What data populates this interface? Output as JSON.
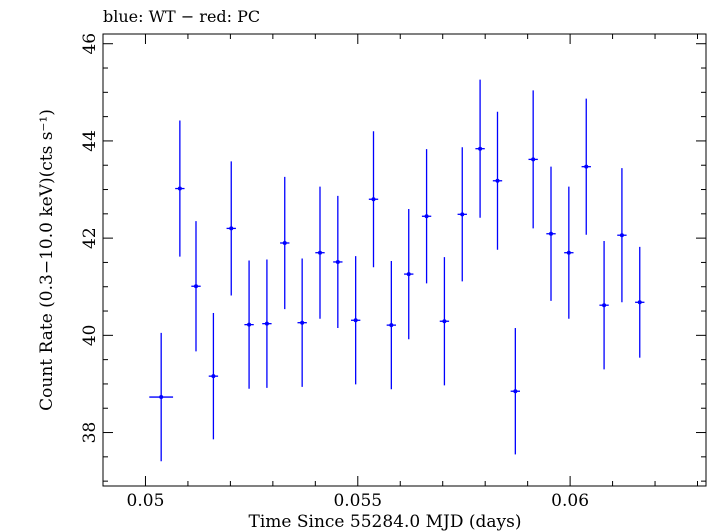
{
  "chart_data": {
    "type": "scatter",
    "title": "blue: WT − red: PC",
    "xlabel": "Time Since 55284.0 MJD (days)",
    "ylabel": "Count Rate (0.3−10.0 keV)(cts s⁻¹)",
    "xlim": [
      0.049,
      0.0632
    ],
    "ylim": [
      36.9,
      46.2
    ],
    "x_ticks": [
      0.05,
      0.055,
      0.06
    ],
    "x_tick_labels": [
      "0.05",
      "0.055",
      "0.06"
    ],
    "y_ticks": [
      38,
      40,
      42,
      44,
      46
    ],
    "y_tick_labels": [
      "38",
      "40",
      "42",
      "44",
      "46"
    ],
    "grid": false,
    "series": [
      {
        "name": "WT",
        "color": "#0000ff",
        "points": [
          {
            "x": 0.05037,
            "xerr": 0.00028,
            "y": 38.73,
            "yerr": 1.32
          },
          {
            "x": 0.05081,
            "xerr": 0.00011,
            "y": 43.02,
            "yerr": 1.4
          },
          {
            "x": 0.05119,
            "xerr": 0.00011,
            "y": 41.01,
            "yerr": 1.34
          },
          {
            "x": 0.0516,
            "xerr": 0.00011,
            "y": 39.16,
            "yerr": 1.3
          },
          {
            "x": 0.05202,
            "xerr": 0.00011,
            "y": 42.2,
            "yerr": 1.38
          },
          {
            "x": 0.05244,
            "xerr": 0.00011,
            "y": 40.22,
            "yerr": 1.32
          },
          {
            "x": 0.05286,
            "xerr": 0.00011,
            "y": 40.24,
            "yerr": 1.32
          },
          {
            "x": 0.05328,
            "xerr": 0.00011,
            "y": 41.9,
            "yerr": 1.36
          },
          {
            "x": 0.05369,
            "xerr": 0.00011,
            "y": 40.26,
            "yerr": 1.32
          },
          {
            "x": 0.05411,
            "xerr": 0.00011,
            "y": 41.7,
            "yerr": 1.36
          },
          {
            "x": 0.05453,
            "xerr": 0.00011,
            "y": 41.51,
            "yerr": 1.36
          },
          {
            "x": 0.05495,
            "xerr": 0.00011,
            "y": 40.31,
            "yerr": 1.32
          },
          {
            "x": 0.05537,
            "xerr": 0.00011,
            "y": 42.8,
            "yerr": 1.4
          },
          {
            "x": 0.05579,
            "xerr": 0.00011,
            "y": 40.21,
            "yerr": 1.32
          },
          {
            "x": 0.0562,
            "xerr": 0.00011,
            "y": 41.26,
            "yerr": 1.34
          },
          {
            "x": 0.05662,
            "xerr": 0.00011,
            "y": 42.45,
            "yerr": 1.38
          },
          {
            "x": 0.05704,
            "xerr": 0.00011,
            "y": 40.29,
            "yerr": 1.32
          },
          {
            "x": 0.05746,
            "xerr": 0.00011,
            "y": 42.49,
            "yerr": 1.38
          },
          {
            "x": 0.05788,
            "xerr": 0.00011,
            "y": 43.84,
            "yerr": 1.42
          },
          {
            "x": 0.05829,
            "xerr": 0.00011,
            "y": 43.18,
            "yerr": 1.42
          },
          {
            "x": 0.05871,
            "xerr": 0.00011,
            "y": 38.85,
            "yerr": 1.3
          },
          {
            "x": 0.05913,
            "xerr": 0.00011,
            "y": 43.62,
            "yerr": 1.42
          },
          {
            "x": 0.05955,
            "xerr": 0.00011,
            "y": 42.09,
            "yerr": 1.38
          },
          {
            "x": 0.05997,
            "xerr": 0.00011,
            "y": 41.7,
            "yerr": 1.36
          },
          {
            "x": 0.06038,
            "xerr": 0.00011,
            "y": 43.47,
            "yerr": 1.4
          },
          {
            "x": 0.0608,
            "xerr": 0.00011,
            "y": 40.62,
            "yerr": 1.32
          },
          {
            "x": 0.06122,
            "xerr": 0.00011,
            "y": 42.06,
            "yerr": 1.38
          },
          {
            "x": 0.06164,
            "xerr": 0.00011,
            "y": 40.68,
            "yerr": 1.14
          }
        ]
      }
    ]
  }
}
